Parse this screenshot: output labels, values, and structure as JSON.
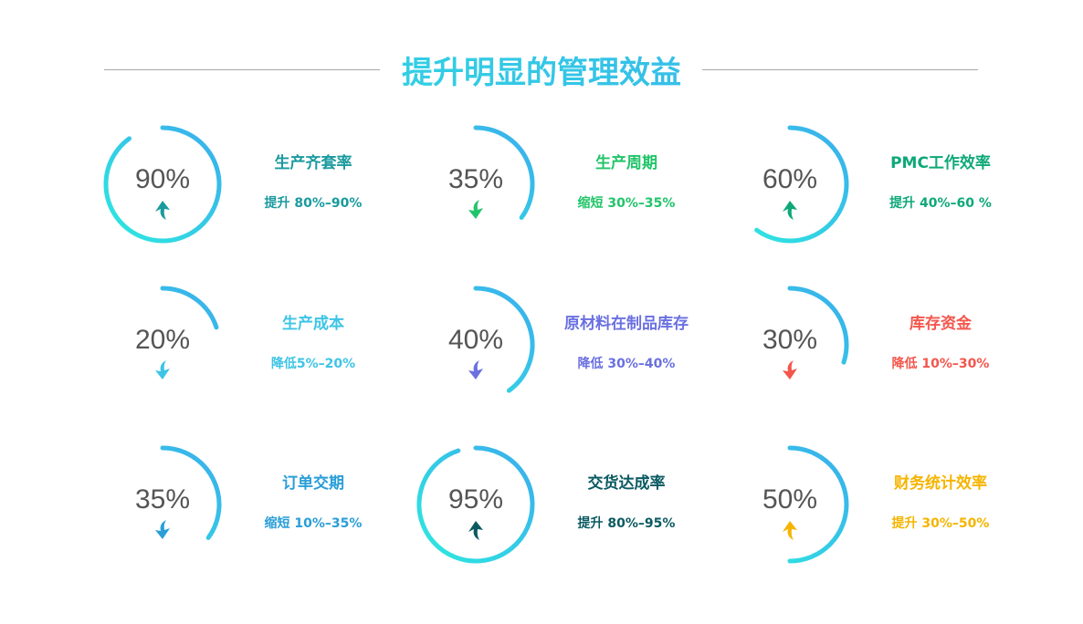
{
  "title": "提升明显的管理效益",
  "gradient": {
    "start": "#2ee6e0",
    "end": "#3ab0ec"
  },
  "items": [
    {
      "percent": "90%",
      "value": 90,
      "name": "生产齐套率",
      "change": "提升 80%–90%",
      "direction": "up",
      "color": "#1a9a9e"
    },
    {
      "percent": "35%",
      "value": 35,
      "name": "生产周期",
      "change": "缩短 30%–35%",
      "direction": "down",
      "color": "#22c46a"
    },
    {
      "percent": "60%",
      "value": 60,
      "name": "PMC工作效率",
      "change": "提升 40%–60 %",
      "direction": "up",
      "color": "#0ea878"
    },
    {
      "percent": "20%",
      "value": 20,
      "name": "生产成本",
      "change": "降低5%–20%",
      "direction": "down",
      "color": "#3ec4e6"
    },
    {
      "percent": "40%",
      "value": 40,
      "name": "原材料在制品库存",
      "change": "降低 30%–40%",
      "direction": "down",
      "color": "#6a70e0"
    },
    {
      "percent": "30%",
      "value": 30,
      "name": "库存资金",
      "change": "降低 10%–30%",
      "direction": "down",
      "color": "#f4564c"
    },
    {
      "percent": "35%",
      "value": 35,
      "name": "订单交期",
      "change": "缩短 10%–35%",
      "direction": "down",
      "color": "#2a9ed8"
    },
    {
      "percent": "95%",
      "value": 95,
      "name": "交货达成率",
      "change": "提升 80%–95%",
      "direction": "up",
      "color": "#0b5a62"
    },
    {
      "percent": "50%",
      "value": 50,
      "name": "财务统计效率",
      "change": "提升 30%–50%",
      "direction": "up",
      "color": "#f5b400"
    }
  ]
}
